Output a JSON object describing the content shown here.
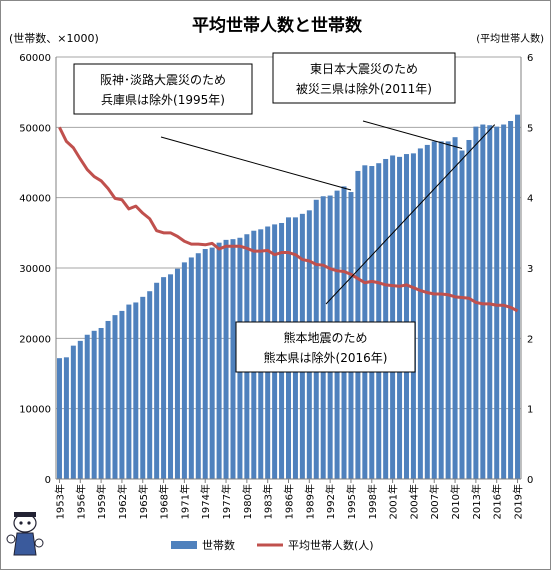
{
  "chart_data": {
    "type": "bar+line",
    "title": "平均世帯人数と世帯数",
    "left_axis_label": "(世帯数、×1000)",
    "right_axis_label": "(平均世帯人数)",
    "left_ticks": [
      "0",
      "10000",
      "20000",
      "30000",
      "40000",
      "50000",
      "60000"
    ],
    "right_ticks": [
      "0",
      "1",
      "2",
      "3",
      "4",
      "5",
      "6"
    ],
    "ylim_left": [
      0,
      60000
    ],
    "ylim_right": [
      0,
      6
    ],
    "x_tick_labels": [
      "1953年",
      "1956年",
      "1959年",
      "1962年",
      "1965年",
      "1968年",
      "1971年",
      "1974年",
      "1977年",
      "1980年",
      "1983年",
      "1986年",
      "1989年",
      "1992年",
      "1995年",
      "1998年",
      "2001年",
      "2004年",
      "2007年",
      "2010年",
      "2013年",
      "2016年",
      "2019年"
    ],
    "years": [
      1953,
      1954,
      1955,
      1956,
      1957,
      1958,
      1959,
      1960,
      1961,
      1962,
      1963,
      1964,
      1965,
      1966,
      1967,
      1968,
      1969,
      1970,
      1971,
      1972,
      1973,
      1974,
      1975,
      1976,
      1977,
      1978,
      1979,
      1980,
      1981,
      1982,
      1983,
      1984,
      1985,
      1986,
      1987,
      1988,
      1989,
      1990,
      1991,
      1992,
      1993,
      1994,
      1995,
      1996,
      1997,
      1998,
      1999,
      2000,
      2001,
      2002,
      2003,
      2004,
      2005,
      2006,
      2007,
      2008,
      2009,
      2010,
      2011,
      2012,
      2013,
      2014,
      2015,
      2016,
      2017,
      2018,
      2019
    ],
    "series": [
      {
        "name": "世帯数",
        "kind": "bar",
        "color": "#4f81bd",
        "values": [
          17180,
          17300,
          18960,
          19640,
          20510,
          21070,
          21470,
          22470,
          23300,
          23900,
          24800,
          25100,
          25900,
          26700,
          27900,
          28700,
          29100,
          29900,
          30800,
          31500,
          32100,
          32700,
          32900,
          33600,
          34000,
          34100,
          34300,
          34800,
          35300,
          35500,
          35900,
          36200,
          36400,
          37200,
          37200,
          37700,
          38200,
          39700,
          40200,
          40300,
          41000,
          41600,
          40800,
          43800,
          44600,
          44500,
          44900,
          45500,
          46000,
          45800,
          46200,
          46300,
          47000,
          47500,
          48000,
          48000,
          48000,
          48600,
          46700,
          48200,
          50100,
          50400,
          50300,
          50100,
          50400,
          50900,
          51800
        ]
      },
      {
        "name": "平均世帯人数(人)",
        "kind": "line",
        "color": "#c0504d",
        "values": [
          5.0,
          4.8,
          4.71,
          4.55,
          4.4,
          4.3,
          4.24,
          4.13,
          3.99,
          3.97,
          3.84,
          3.88,
          3.78,
          3.7,
          3.53,
          3.5,
          3.5,
          3.45,
          3.38,
          3.34,
          3.34,
          3.33,
          3.35,
          3.27,
          3.31,
          3.31,
          3.31,
          3.28,
          3.24,
          3.24,
          3.25,
          3.19,
          3.22,
          3.22,
          3.19,
          3.12,
          3.1,
          3.05,
          3.04,
          2.99,
          2.96,
          2.95,
          2.91,
          2.85,
          2.79,
          2.81,
          2.79,
          2.76,
          2.75,
          2.74,
          2.76,
          2.72,
          2.68,
          2.65,
          2.63,
          2.63,
          2.62,
          2.59,
          2.58,
          2.57,
          2.51,
          2.49,
          2.49,
          2.47,
          2.47,
          2.44,
          2.39
        ]
      }
    ],
    "annotations": [
      {
        "line1": "阪神･淡路大震災のため",
        "line2": "兵庫県は除外(1995年)"
      },
      {
        "line1": "東日本大震災のため",
        "line2": "被災三県は除外(2011年)"
      },
      {
        "line1": "熊本地震のため",
        "line2": "熊本県は除外(2016年)"
      }
    ],
    "legend_position": "bottom-center"
  }
}
